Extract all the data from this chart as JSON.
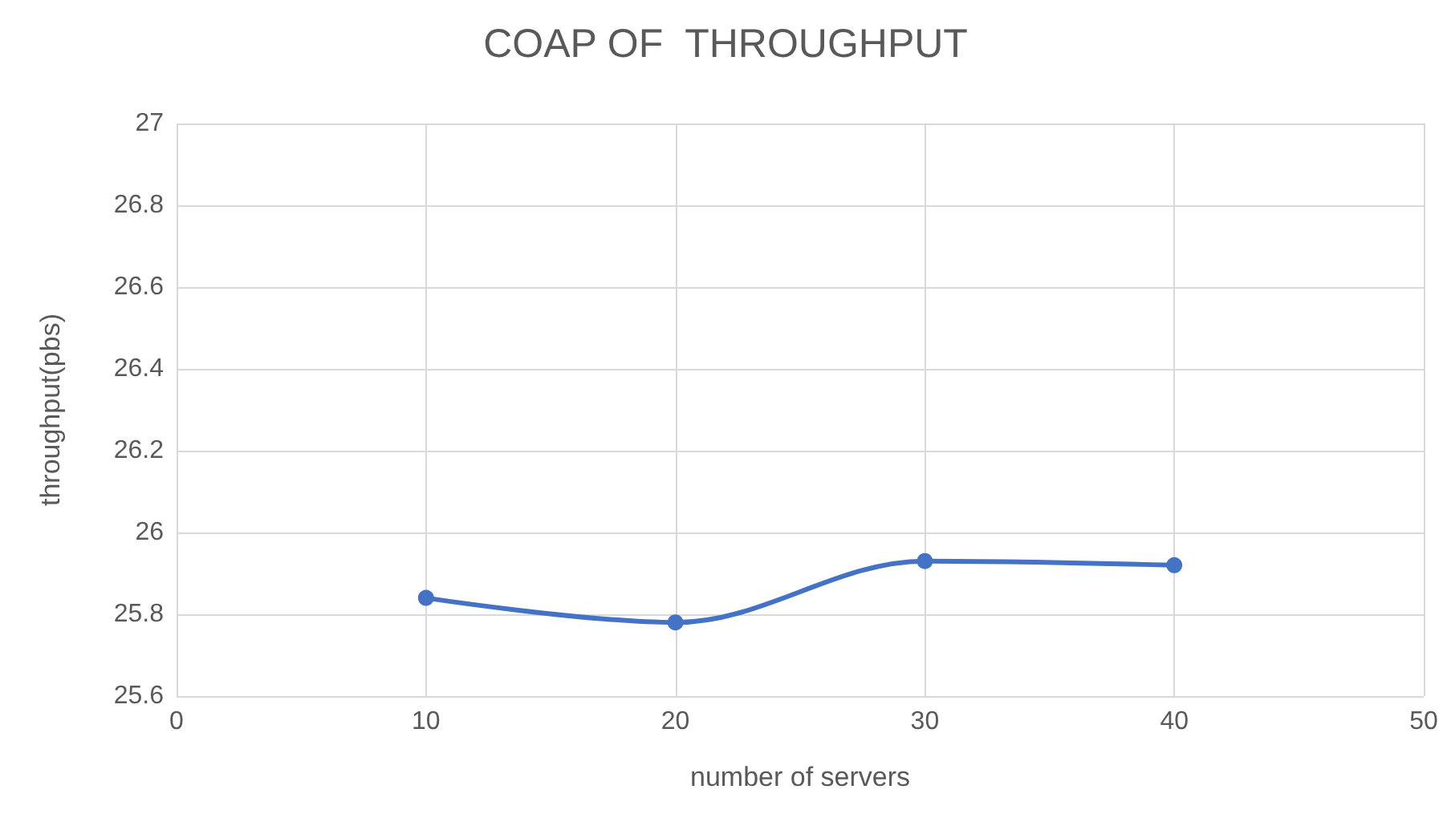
{
  "chart_data": {
    "type": "line",
    "title": "COAP OF  THROUGHPUT",
    "xlabel": "number of servers",
    "ylabel": "throughput(pbs)",
    "x": [
      10,
      20,
      30,
      40
    ],
    "series": [
      {
        "color": "#4472c4",
        "values": [
          25.84,
          25.78,
          25.93,
          25.92
        ]
      }
    ],
    "xlim": [
      0,
      50
    ],
    "xticks": [
      0,
      10,
      20,
      30,
      40,
      50
    ],
    "ylim": [
      25.6,
      27
    ],
    "yticks": [
      25.6,
      25.8,
      26,
      26.2,
      26.4,
      26.6,
      26.8,
      27
    ],
    "grid": true,
    "marker": "circle",
    "line_style": "solid"
  }
}
